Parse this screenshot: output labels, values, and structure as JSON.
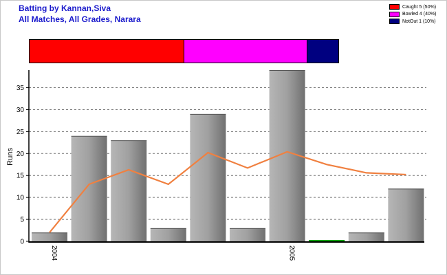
{
  "header": {
    "title_line1": "Batting by Kannan,Siva",
    "title_line2": "All Matches, All Grades, Narara"
  },
  "legend": [
    {
      "label": "Caught 5 (50%)",
      "color": "#ff0000",
      "fraction": 0.5
    },
    {
      "label": "Bowled 4 (40%)",
      "color": "#ff00ff",
      "fraction": 0.4
    },
    {
      "label": "NotOut 1 (10%)",
      "color": "#000080",
      "fraction": 0.1
    }
  ],
  "chart_data": {
    "type": "bar",
    "ylabel": "Runs",
    "ylim": [
      0,
      39
    ],
    "yticks": [
      0,
      5,
      10,
      15,
      20,
      25,
      30,
      35
    ],
    "grid": "horizontal dashed",
    "x_tick_labels": [
      {
        "index": 0,
        "label": "2004"
      },
      {
        "index": 6,
        "label": "2005"
      }
    ],
    "series": [
      {
        "type": "bar",
        "color": "#9a9a9a",
        "values": [
          2,
          24,
          23,
          3,
          29,
          3,
          39,
          0,
          2,
          12
        ],
        "notout_color": "#00a000",
        "notout_index": 7
      },
      {
        "type": "line",
        "color": "#f08040",
        "values": [
          2,
          13,
          16.3,
          13,
          20.2,
          16.7,
          20.4,
          17.5,
          15.6,
          15.2
        ]
      }
    ]
  }
}
